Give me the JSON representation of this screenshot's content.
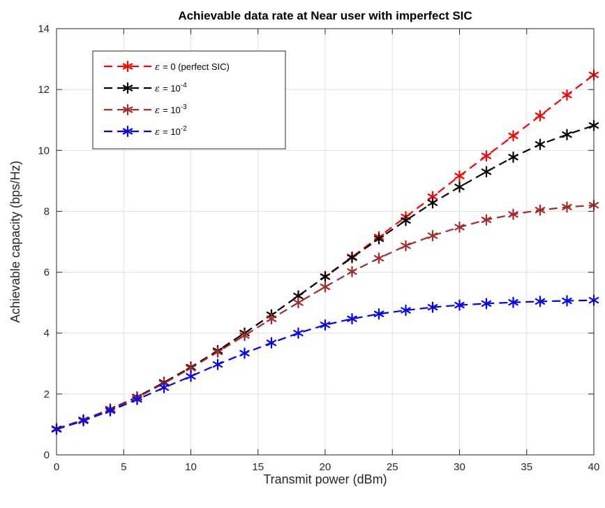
{
  "chart_data": {
    "type": "line",
    "title": "Achievable data rate at Near user with imperfect SIC",
    "xlabel": "Transmit power (dBm)",
    "ylabel": "Achievable capacity (bps/Hz)",
    "xlim": [
      0,
      40
    ],
    "ylim": [
      0,
      14
    ],
    "xticks": [
      0,
      5,
      10,
      15,
      20,
      25,
      30,
      35,
      40
    ],
    "yticks": [
      0,
      2,
      4,
      6,
      8,
      10,
      12,
      14
    ],
    "grid": true,
    "legend_position": "top-left",
    "x": [
      0,
      2,
      4,
      6,
      8,
      10,
      12,
      14,
      16,
      18,
      20,
      22,
      24,
      26,
      28,
      30,
      32,
      34,
      36,
      38,
      40
    ],
    "series": [
      {
        "name": "= 0 (perfect SIC)",
        "legend_prefix": "ε",
        "legend_exp": "",
        "color": "#ff0000",
        "values": [
          0.86,
          1.15,
          1.5,
          1.9,
          2.38,
          2.88,
          3.42,
          4.0,
          4.6,
          5.22,
          5.86,
          6.5,
          7.16,
          7.82,
          8.48,
          9.16,
          9.82,
          10.48,
          11.14,
          11.82,
          12.48
        ]
      },
      {
        "name": "= 10",
        "legend_prefix": "ε",
        "legend_exp": "-4",
        "color": "#000000",
        "values": [
          0.86,
          1.15,
          1.5,
          1.9,
          2.38,
          2.88,
          3.42,
          4.0,
          4.6,
          5.22,
          5.85,
          6.48,
          7.1,
          7.7,
          8.28,
          8.8,
          9.3,
          9.78,
          10.2,
          10.52,
          10.82
        ]
      },
      {
        "name": "= 10",
        "legend_prefix": "ε",
        "legend_exp": "-3",
        "color": "#a52a2a",
        "values": [
          0.86,
          1.14,
          1.48,
          1.88,
          2.35,
          2.85,
          3.38,
          3.92,
          4.47,
          5.0,
          5.52,
          6.02,
          6.46,
          6.87,
          7.2,
          7.48,
          7.72,
          7.9,
          8.04,
          8.14,
          8.2
        ]
      },
      {
        "name": "= 10",
        "legend_prefix": "ε",
        "legend_exp": "-2",
        "color": "#0000ff",
        "values": [
          0.84,
          1.12,
          1.45,
          1.82,
          2.21,
          2.58,
          2.97,
          3.34,
          3.68,
          4.0,
          4.27,
          4.47,
          4.63,
          4.75,
          4.85,
          4.92,
          4.97,
          5.01,
          5.04,
          5.06,
          5.08
        ]
      }
    ]
  }
}
